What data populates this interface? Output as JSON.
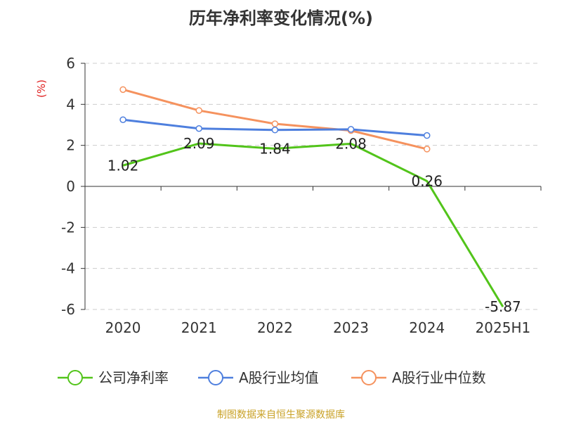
{
  "chart_data": {
    "type": "line",
    "title": "历年净利率变化情况(%)",
    "ylabel": "(%)",
    "xlabel": "",
    "categories": [
      "2020",
      "2021",
      "2022",
      "2023",
      "2024",
      "2025H1"
    ],
    "ylim": [
      -6,
      6
    ],
    "yticks": [
      "6",
      "4",
      "2",
      "0",
      "-2",
      "-4",
      "-6"
    ],
    "grid": true,
    "legend_position": "bottom",
    "series": [
      {
        "name": "公司净利率",
        "color": "#52c41a",
        "values": [
          1.02,
          2.09,
          1.84,
          2.08,
          0.26,
          -5.87
        ],
        "labels": [
          "1.02",
          "2.09",
          "1.84",
          "2.08",
          "0.26",
          "-5.87"
        ]
      },
      {
        "name": "A股行业均值",
        "color": "#4e7fde",
        "values": [
          3.25,
          2.82,
          2.75,
          2.78,
          2.48,
          null
        ]
      },
      {
        "name": "A股行业中位数",
        "color": "#f5925e",
        "values": [
          4.72,
          3.7,
          3.05,
          2.72,
          1.82,
          null
        ]
      }
    ]
  },
  "unit_color": "#e02020",
  "source_text": "制图数据来自恒生聚源数据库",
  "source_color": "#c9a227"
}
